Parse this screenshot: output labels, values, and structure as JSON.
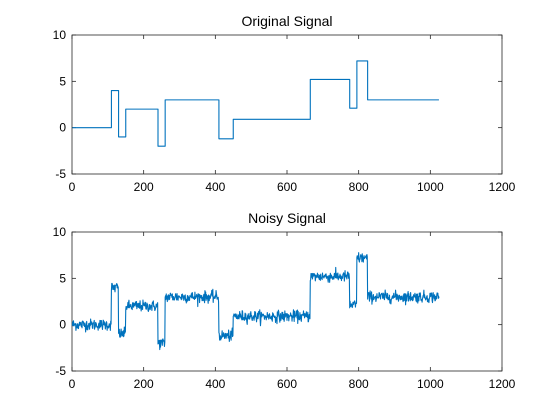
{
  "chart_data": [
    {
      "type": "line",
      "title": "Original Signal",
      "xlabel": "",
      "ylabel": "",
      "xlim": [
        0,
        1200
      ],
      "ylim": [
        -5,
        10
      ],
      "xticks": [
        0,
        200,
        400,
        600,
        800,
        1000,
        1200
      ],
      "yticks": [
        -5,
        0,
        5,
        10
      ],
      "grid": false,
      "color": "#0072BD",
      "series": [
        {
          "kind": "step",
          "x": [
            1,
            110,
            110,
            130,
            130,
            150,
            150,
            240,
            240,
            260,
            260,
            410,
            410,
            450,
            450,
            665,
            665,
            775,
            775,
            795,
            795,
            825,
            825,
            1024
          ],
          "y": [
            0,
            0,
            4,
            4,
            -1,
            -1,
            2,
            2,
            -2,
            -2,
            3,
            3,
            -1.2,
            -1.2,
            0.9,
            0.9,
            5.2,
            5.2,
            2.1,
            2.1,
            7.2,
            7.2,
            3,
            3
          ]
        }
      ]
    },
    {
      "type": "line",
      "title": "Noisy Signal",
      "xlabel": "",
      "ylabel": "",
      "xlim": [
        0,
        1200
      ],
      "ylim": [
        -5,
        10
      ],
      "xticks": [
        0,
        200,
        400,
        600,
        800,
        1000,
        1200
      ],
      "yticks": [
        -5,
        0,
        5,
        10
      ],
      "grid": false,
      "color": "#0072BD",
      "series": [
        {
          "kind": "noisy",
          "x_range": [
            1,
            1024
          ],
          "noise_std": 0.3,
          "levels": [
            {
              "x0": 1,
              "x1": 110,
              "y": 0
            },
            {
              "x0": 110,
              "x1": 130,
              "y": 4
            },
            {
              "x0": 130,
              "x1": 150,
              "y": -1
            },
            {
              "x0": 150,
              "x1": 240,
              "y": 2
            },
            {
              "x0": 240,
              "x1": 260,
              "y": -2
            },
            {
              "x0": 260,
              "x1": 410,
              "y": 3
            },
            {
              "x0": 410,
              "x1": 450,
              "y": -1.2
            },
            {
              "x0": 450,
              "x1": 665,
              "y": 0.9
            },
            {
              "x0": 665,
              "x1": 775,
              "y": 5.2
            },
            {
              "x0": 775,
              "x1": 795,
              "y": 2.1
            },
            {
              "x0": 795,
              "x1": 825,
              "y": 7.2
            },
            {
              "x0": 825,
              "x1": 1024,
              "y": 3
            }
          ]
        }
      ]
    }
  ]
}
